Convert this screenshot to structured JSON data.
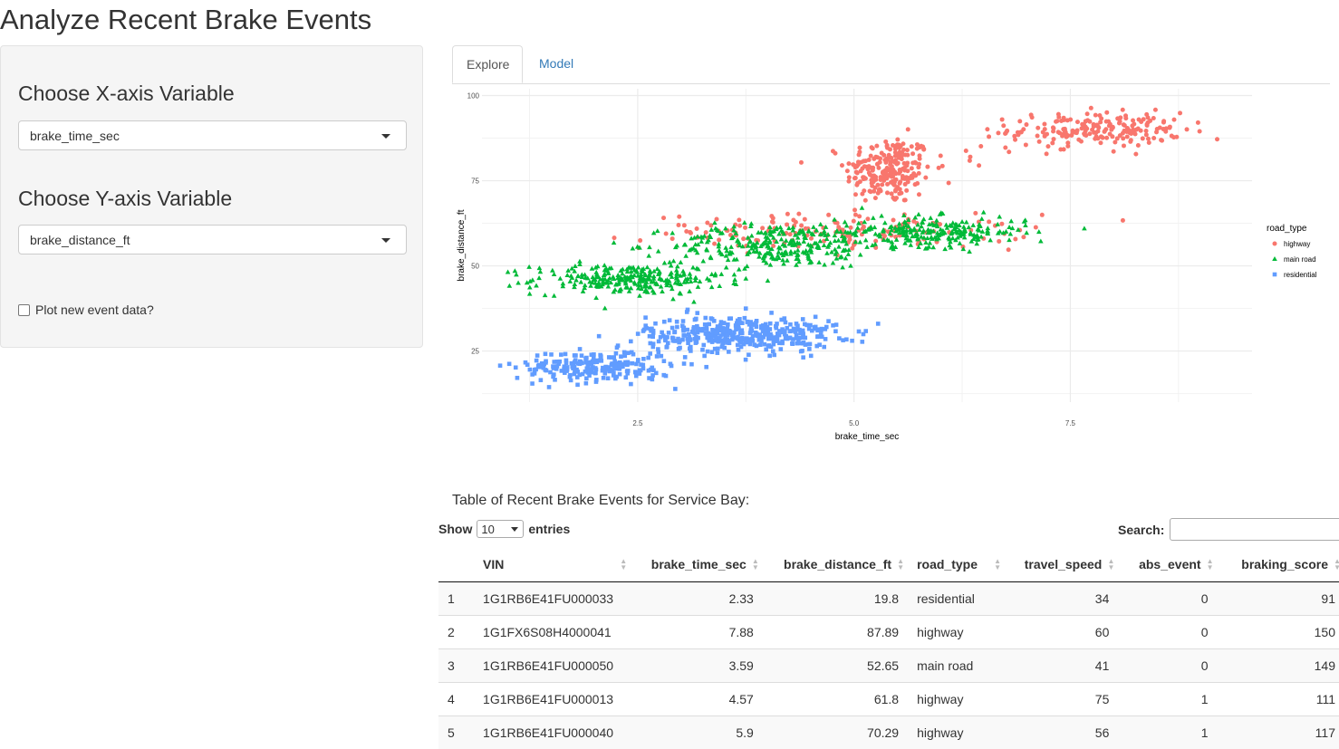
{
  "page": {
    "title": "Analyze Recent Brake Events"
  },
  "sidebar": {
    "x_label": "Choose X-axis Variable",
    "x_selected": "brake_time_sec",
    "y_label": "Choose Y-axis Variable",
    "y_selected": "brake_distance_ft",
    "checkbox_label": "Plot new event data?",
    "checkbox_checked": false
  },
  "tabs": [
    {
      "label": "Explore",
      "active": true
    },
    {
      "label": "Model",
      "active": false
    }
  ],
  "chart_data": {
    "type": "scatter",
    "title": "",
    "xlabel": "brake_time_sec",
    "ylabel": "brake_distance_ft",
    "xlim": [
      0.7,
      9.6
    ],
    "ylim": [
      10,
      102
    ],
    "xticks": [
      2.5,
      5.0,
      7.5
    ],
    "yticks": [
      25,
      50,
      75,
      100
    ],
    "grid": true,
    "legend": {
      "title": "road_type",
      "placement": "right"
    },
    "series": [
      {
        "name": "highway",
        "color": "#F8766D",
        "marker": "circle",
        "clusters": [
          {
            "cx": 5.4,
            "cy": 78,
            "sx": 0.25,
            "sy": 5,
            "n": 230
          },
          {
            "cx": 7.8,
            "cy": 90,
            "sx": 0.5,
            "sy": 2.5,
            "n": 200
          },
          {
            "cx": 4.8,
            "cy": 60,
            "sx": 1.1,
            "sy": 2.5,
            "n": 160
          },
          {
            "cx": 6.5,
            "cy": 84,
            "sx": 0.5,
            "sy": 3,
            "n": 14
          }
        ]
      },
      {
        "name": "main road",
        "color": "#00BA38",
        "marker": "triangle",
        "clusters": [
          {
            "cx": 2.4,
            "cy": 46,
            "sx": 0.55,
            "sy": 2.2,
            "n": 270
          },
          {
            "cx": 4.1,
            "cy": 56,
            "sx": 0.6,
            "sy": 3.2,
            "n": 270
          },
          {
            "cx": 5.9,
            "cy": 60,
            "sx": 0.55,
            "sy": 2.2,
            "n": 250
          }
        ]
      },
      {
        "name": "residential",
        "color": "#619CFF",
        "marker": "square",
        "clusters": [
          {
            "cx": 2.0,
            "cy": 20.5,
            "sx": 0.45,
            "sy": 2.3,
            "n": 230
          },
          {
            "cx": 3.7,
            "cy": 30,
            "sx": 0.55,
            "sy": 2.6,
            "n": 400
          }
        ]
      }
    ]
  },
  "table": {
    "caption": "Table of Recent Brake Events for Service Bay:",
    "show_label": "Show",
    "entries_label": "entries",
    "length_value": "10",
    "search_label": "Search:",
    "search_value": "",
    "columns": [
      "",
      "VIN",
      "brake_time_sec",
      "brake_distance_ft",
      "road_type",
      "travel_speed",
      "abs_event",
      "braking_score"
    ],
    "rows": [
      [
        "1",
        "1G1RB6E41FU000033",
        "2.33",
        "19.8",
        "residential",
        "34",
        "0",
        "91"
      ],
      [
        "2",
        "1G1FX6S08H4000041",
        "7.88",
        "87.89",
        "highway",
        "60",
        "0",
        "150"
      ],
      [
        "3",
        "1G1RB6E41FU000050",
        "3.59",
        "52.65",
        "main road",
        "41",
        "0",
        "149"
      ],
      [
        "4",
        "1G1RB6E41FU000013",
        "4.57",
        "61.8",
        "highway",
        "75",
        "1",
        "111"
      ],
      [
        "5",
        "1G1RB6E41FU000040",
        "5.9",
        "70.29",
        "highway",
        "56",
        "1",
        "117"
      ]
    ]
  }
}
